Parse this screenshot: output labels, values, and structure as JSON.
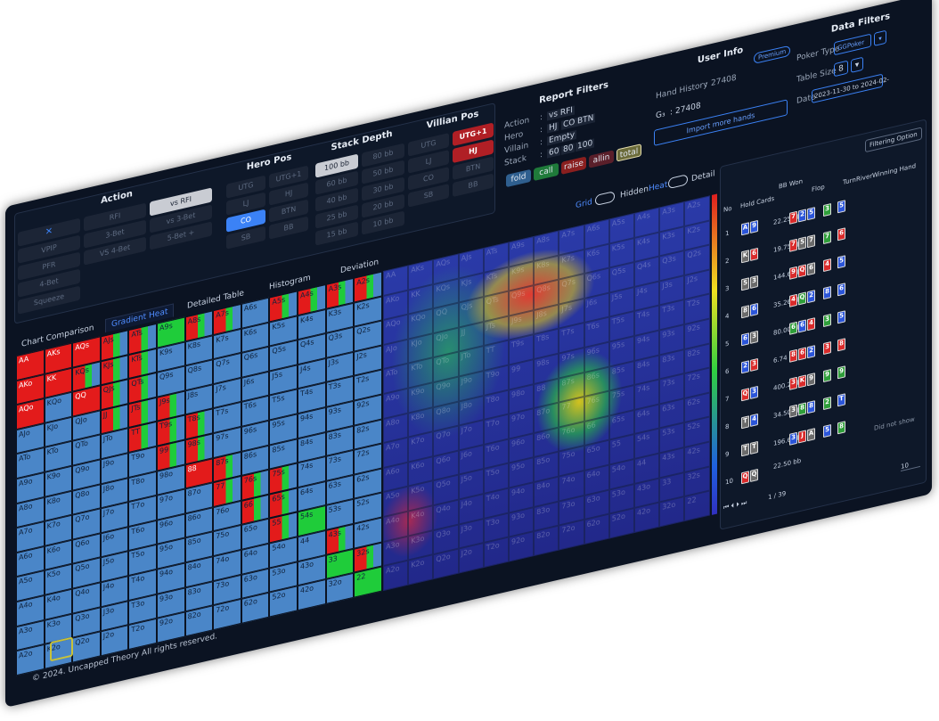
{
  "filters": {
    "action": {
      "title": "Action",
      "options": [
        "RFI",
        "vs RFI",
        "VPIP",
        "3-Bet",
        "vs 3-Bet",
        "PFR",
        "VS 4-Bet",
        "5-Bet +",
        "4-Bet",
        "Squeeze"
      ],
      "selected": [
        1
      ]
    },
    "hero_pos": {
      "title": "Hero Pos",
      "options": [
        "UTG",
        "UTG+1",
        "LJ",
        "HJ",
        "CO",
        "BTN",
        "SB",
        "BB"
      ],
      "selected": [
        4
      ]
    },
    "stack_depth": {
      "title": "Stack Depth",
      "options": [
        "100 bb",
        "80 bb",
        "60 bb",
        "50 bb",
        "40 bb",
        "30 bb",
        "25 bb",
        "20 bb",
        "15 bb",
        "10 bb"
      ],
      "selected": [
        0
      ]
    },
    "villian_pos": {
      "title": "Villian Pos",
      "options": [
        "UTG",
        "UTG+1",
        "LJ",
        "HJ",
        "CO",
        "BTN",
        "SB",
        "BB"
      ],
      "selected": [
        1,
        3
      ]
    }
  },
  "report_filters": {
    "title": "Report Filters",
    "separator": ":",
    "rows": [
      {
        "label": "Action",
        "values": [
          "vs RFI"
        ]
      },
      {
        "label": "Hero",
        "values": [
          "HJ",
          "CO",
          "BTN"
        ]
      },
      {
        "label": "Villain",
        "values": [
          "Empty"
        ]
      },
      {
        "label": "Stack",
        "values": [
          "60",
          "80",
          "100"
        ]
      }
    ],
    "legend": [
      {
        "label": "fold",
        "color": "#2f5f8f"
      },
      {
        "label": "call",
        "color": "#1f7a3a"
      },
      {
        "label": "raise",
        "color": "#8a1f1f"
      },
      {
        "label": "allin",
        "color": "#5a1f2a"
      },
      {
        "label": "total",
        "color": "#6b6b3a"
      }
    ]
  },
  "user_info": {
    "title": "User Info",
    "badge": "Premium",
    "hand_history_label": "Hand History",
    "separator": ":",
    "hand_history_value": "27408",
    "g_label": "G₃",
    "g_value": "27408",
    "button": "Import more hands"
  },
  "data_filters": {
    "title": "Data Filters",
    "poker_type_label": "Poker Type",
    "poker_type": "GGPoker",
    "table_size_label": "Table Size",
    "table_size": "8",
    "date_label": "Date",
    "date": "2023-11-30 to 2024-02-"
  },
  "toggles": [
    "Grid",
    "Hidden",
    "Heat",
    "Detail"
  ],
  "tabs": {
    "items": [
      "Chart Comparison",
      "Gradient Heat",
      "Detailed Table",
      "Histogram",
      "Deviation"
    ],
    "active": 1
  },
  "range": {
    "colors": {
      "r": "#e31b1b",
      "g": "#1fcc3a",
      "b": "#4a86c8"
    },
    "hands": [
      [
        "AA",
        "AKs",
        "AQs",
        "AJs",
        "ATs",
        "A9s",
        "A8s",
        "A7s",
        "A6s",
        "A5s",
        "A4s",
        "A3s",
        "A2s"
      ],
      [
        "AKo",
        "KK",
        "KQs",
        "KJs",
        "KTs",
        "K9s",
        "K8s",
        "K7s",
        "K6s",
        "K5s",
        "K4s",
        "K3s",
        "K2s"
      ],
      [
        "AQo",
        "KQo",
        "QQ",
        "QJs",
        "QTs",
        "Q9s",
        "Q8s",
        "Q7s",
        "Q6s",
        "Q5s",
        "Q4s",
        "Q3s",
        "Q2s"
      ],
      [
        "AJo",
        "KJo",
        "QJo",
        "JJ",
        "JTs",
        "J9s",
        "J8s",
        "J7s",
        "J6s",
        "J5s",
        "J4s",
        "J3s",
        "J2s"
      ],
      [
        "ATo",
        "KTo",
        "QTo",
        "JTo",
        "TT",
        "T9s",
        "T8s",
        "T7s",
        "T6s",
        "T5s",
        "T4s",
        "T3s",
        "T2s"
      ],
      [
        "A9o",
        "K9o",
        "Q9o",
        "J9o",
        "T9o",
        "99",
        "98s",
        "97s",
        "96s",
        "95s",
        "94s",
        "93s",
        "92s"
      ],
      [
        "A8o",
        "K8o",
        "Q8o",
        "J8o",
        "T8o",
        "98o",
        "88",
        "87s",
        "86s",
        "85s",
        "84s",
        "83s",
        "82s"
      ],
      [
        "A7o",
        "K7o",
        "Q7o",
        "J7o",
        "T7o",
        "97o",
        "87o",
        "77",
        "76s",
        "75s",
        "74s",
        "73s",
        "72s"
      ],
      [
        "A6o",
        "K6o",
        "Q6o",
        "J6o",
        "T6o",
        "96o",
        "86o",
        "76o",
        "66",
        "65s",
        "64s",
        "63s",
        "62s"
      ],
      [
        "A5o",
        "K5o",
        "Q5o",
        "J5o",
        "T5o",
        "95o",
        "85o",
        "75o",
        "65o",
        "55",
        "54s",
        "53s",
        "52s"
      ],
      [
        "A4o",
        "K4o",
        "Q4o",
        "J4o",
        "T4o",
        "94o",
        "84o",
        "74o",
        "64o",
        "54o",
        "44",
        "43s",
        "42s"
      ],
      [
        "A3o",
        "K3o",
        "Q3o",
        "J3o",
        "T3o",
        "93o",
        "83o",
        "73o",
        "63o",
        "53o",
        "43o",
        "33",
        "32s"
      ],
      [
        "A2o",
        "K2o",
        "Q2o",
        "J2o",
        "T2o",
        "92o",
        "82o",
        "72o",
        "62o",
        "52o",
        "42o",
        "32o",
        "22"
      ]
    ],
    "actions": [
      "rrrmmgmmbmmmm",
      "rrmmmbbbbbbbb",
      "rbrmmbbbbbbbb",
      "bbbmmmbbbbbbb",
      "bbbbmmmbbbbbb",
      "bbbbbmmbbbbbb",
      "bbbbbbrmbbbbb",
      "bbbbbbbmmmbbb",
      "bbbbbbbbmmbbb",
      "bbbbbbbbbmgbb",
      "bbbbbbbbbbbmb",
      "bbbbbbbbbbbgm",
      "bbbbbbbbbbbbg"
    ]
  },
  "hand_table": {
    "filter_button": "Filtering Option",
    "columns": [
      "No",
      "Hold Cards",
      "BB Won",
      "Flop",
      "Turn",
      "River",
      "Winning Hand"
    ],
    "suit_colors": {
      "s": "#6b6b6b",
      "h": "#d92b2b",
      "d": "#2b55d9",
      "c": "#2f9e3a"
    },
    "rows": [
      {
        "no": 1,
        "bb": "22.25 bb",
        "cards": [
          {
            "r": "A",
            "s": "d"
          },
          {
            "r": "9",
            "s": "d"
          },
          {
            "r": "7",
            "s": "h"
          },
          {
            "r": "2",
            "s": "d"
          },
          {
            "r": "5",
            "s": "d"
          },
          {
            "r": "3",
            "s": "c"
          },
          {
            "r": "5",
            "s": "d"
          }
        ]
      },
      {
        "no": 2,
        "bb": "19.75 bb",
        "cards": [
          {
            "r": "K",
            "s": "s"
          },
          {
            "r": "6",
            "s": "h"
          },
          {
            "r": "7",
            "s": "h"
          },
          {
            "r": "5",
            "s": "s"
          },
          {
            "r": "7",
            "s": "s"
          },
          {
            "r": "7",
            "s": "c"
          },
          {
            "r": "6",
            "s": "h"
          }
        ]
      },
      {
        "no": 3,
        "bb": "144.60 bb",
        "cards": [
          {
            "r": "5",
            "s": "s"
          },
          {
            "r": "3",
            "s": "s"
          },
          {
            "r": "9",
            "s": "h"
          },
          {
            "r": "Q",
            "s": "h"
          },
          {
            "r": "6",
            "s": "s"
          },
          {
            "r": "4",
            "s": "h"
          },
          {
            "r": "5",
            "s": "d"
          }
        ]
      },
      {
        "no": 4,
        "bb": "35.26 bb",
        "cards": [
          {
            "r": "8",
            "s": "s"
          },
          {
            "r": "6",
            "s": "d"
          },
          {
            "r": "4",
            "s": "h"
          },
          {
            "r": "Q",
            "s": "c"
          },
          {
            "r": "2",
            "s": "d"
          },
          {
            "r": "8",
            "s": "d"
          },
          {
            "r": "6",
            "s": "d"
          }
        ]
      },
      {
        "no": 5,
        "bb": "80.00 bb",
        "cards": [
          {
            "r": "6",
            "s": "d"
          },
          {
            "r": "3",
            "s": "s"
          },
          {
            "r": "6",
            "s": "c"
          },
          {
            "r": "6",
            "s": "d"
          },
          {
            "r": "4",
            "s": "h"
          },
          {
            "r": "3",
            "s": "c"
          },
          {
            "r": "5",
            "s": "d"
          }
        ]
      },
      {
        "no": 6,
        "bb": "6.74 bb",
        "cards": [
          {
            "r": "2",
            "s": "d"
          },
          {
            "r": "3",
            "s": "h"
          },
          {
            "r": "8",
            "s": "h"
          },
          {
            "r": "6",
            "s": "h"
          },
          {
            "r": "2",
            "s": "d"
          },
          {
            "r": "3",
            "s": "h"
          },
          {
            "r": "8",
            "s": "h"
          }
        ]
      },
      {
        "no": 7,
        "bb": "400.26 bb",
        "cards": [
          {
            "r": "Q",
            "s": "h"
          },
          {
            "r": "3",
            "s": "d"
          },
          {
            "r": "3",
            "s": "h"
          },
          {
            "r": "K",
            "s": "h"
          },
          {
            "r": "9",
            "s": "s"
          },
          {
            "r": "9",
            "s": "c"
          },
          {
            "r": "9",
            "s": "c"
          }
        ]
      },
      {
        "no": 8,
        "bb": "34.50 bb",
        "cards": [
          {
            "r": "T",
            "s": "s"
          },
          {
            "r": "4",
            "s": "d"
          },
          {
            "r": "3",
            "s": "s"
          },
          {
            "r": "8",
            "s": "c"
          },
          {
            "r": "8",
            "s": "d"
          },
          {
            "r": "2",
            "s": "c"
          },
          {
            "r": "T",
            "s": "d"
          }
        ]
      },
      {
        "no": 9,
        "bb": "196.60 bb",
        "cards": [
          {
            "r": "T",
            "s": "s"
          },
          {
            "r": "T",
            "s": "s"
          },
          {
            "r": "3",
            "s": "d"
          },
          {
            "r": "J",
            "s": "h"
          },
          {
            "r": "A",
            "s": "s"
          },
          {
            "r": "5",
            "s": "d"
          },
          {
            "r": "8",
            "s": "c"
          }
        ]
      },
      {
        "no": 10,
        "bb": "22.50 bb",
        "cards": [
          {
            "r": "Q",
            "s": "h"
          },
          {
            "r": "Q",
            "s": "s"
          }
        ]
      }
    ],
    "did_not_show": "Did not show",
    "pager": "1 / 39",
    "page_size": "10"
  },
  "footer": "© 2024. Uncapped Theory All rights reserved."
}
